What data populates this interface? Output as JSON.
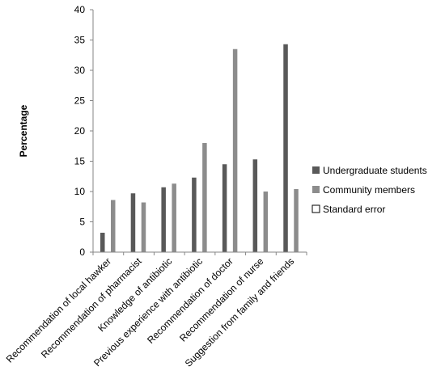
{
  "chart_data": {
    "type": "bar",
    "ylabel": "Percentage",
    "ylim": [
      0,
      40
    ],
    "yticks": [
      0,
      5,
      10,
      15,
      20,
      25,
      30,
      35,
      40
    ],
    "grid": false,
    "legend_position": "right",
    "categories": [
      "Recommendation of local hawker",
      "Recommendation of pharmacist",
      "Knowledge of antibiotic",
      "Previous experience with antibiotic",
      "Recommendation of doctor",
      "Recommendation of nurse",
      "Suggestion from family and friends"
    ],
    "series": [
      {
        "name": "Undergraduate students",
        "color": "#595959",
        "values": [
          3.2,
          9.7,
          10.7,
          12.3,
          14.5,
          15.3,
          34.3
        ]
      },
      {
        "name": "Community members",
        "color": "#8c8c8c",
        "values": [
          8.6,
          8.2,
          11.3,
          18.0,
          33.5,
          10.0,
          10.4
        ]
      },
      {
        "name": "Standard error",
        "color": "#ffffff",
        "values": [
          0,
          0,
          0,
          0,
          0,
          0,
          0
        ]
      }
    ]
  }
}
